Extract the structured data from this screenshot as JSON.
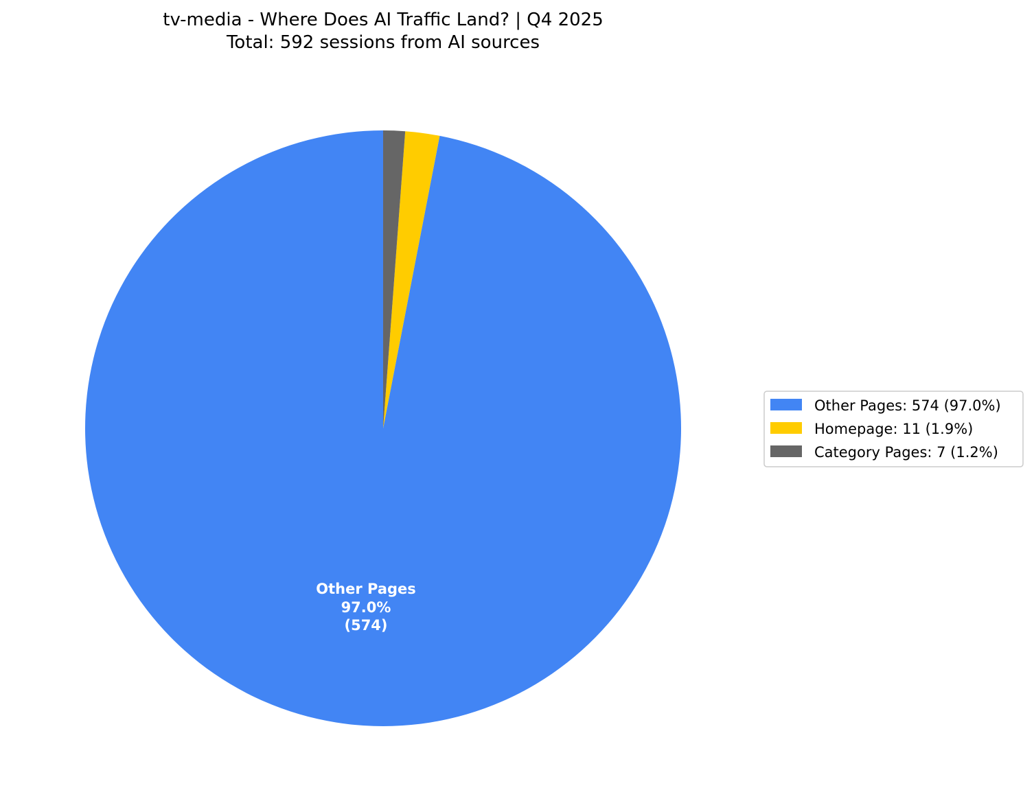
{
  "chart_data": {
    "type": "pie",
    "title": "tv-media - Where Does AI Traffic Land? | Q4 2025",
    "subtitle": "Total: 592 sessions from AI sources",
    "total": 592,
    "start_angle_deg": 90,
    "direction": "counterclockwise",
    "slices": [
      {
        "label": "Other Pages",
        "value": 574,
        "percent": 97.0,
        "color": "#4285F4"
      },
      {
        "label": "Homepage",
        "value": 11,
        "percent": 1.9,
        "color": "#FFCC00"
      },
      {
        "label": "Category Pages",
        "value": 7,
        "percent": 1.2,
        "color": "#666666"
      }
    ],
    "slice_labels": [
      {
        "name": "Other Pages",
        "pct": "97.0%",
        "count": "(574)"
      }
    ],
    "legend": {
      "placement": "right",
      "entries": [
        "Other Pages: 574 (97.0%)",
        "Homepage: 11 (1.9%)",
        "Category Pages: 7 (1.2%)"
      ]
    }
  }
}
